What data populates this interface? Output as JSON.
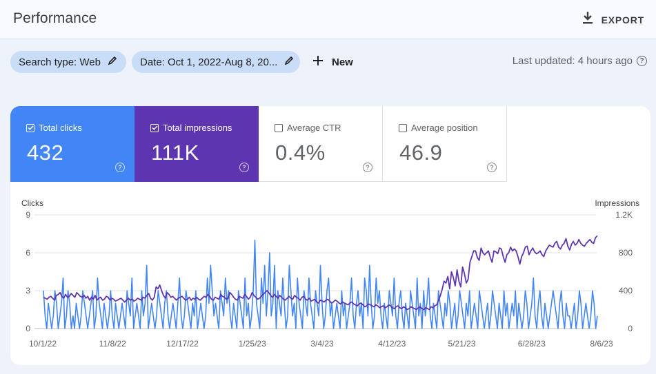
{
  "header": {
    "title": "Performance",
    "export_label": "EXPORT",
    "export_icon": "download-icon"
  },
  "filters": {
    "search_type": "Search type: Web",
    "date": "Date: Oct 1, 2022-Aug 8, 20...",
    "new_label": "New",
    "last_updated": "Last updated: 4 hours ago"
  },
  "metrics": [
    {
      "label": "Total clicks",
      "value": "432",
      "checked": true,
      "color": "#4285f4"
    },
    {
      "label": "Total impressions",
      "value": "111K",
      "checked": true,
      "color": "#5e35b1"
    },
    {
      "label": "Average CTR",
      "value": "0.4%",
      "checked": false
    },
    {
      "label": "Average position",
      "value": "46.9",
      "checked": false
    }
  ],
  "chart_data": {
    "type": "line",
    "left_axis_label": "Clicks",
    "right_axis_label": "Impressions",
    "left_ticks": [
      "9",
      "6",
      "3",
      "0"
    ],
    "right_ticks": [
      "1.2K",
      "800",
      "400",
      "0"
    ],
    "left_ylim": [
      0,
      9
    ],
    "right_ylim": [
      0,
      1200
    ],
    "x_tick_labels": [
      "10/1/22",
      "11/8/22",
      "12/17/22",
      "1/25/23",
      "3/4/23",
      "4/12/23",
      "5/21/23",
      "6/28/23",
      "8/6/23"
    ],
    "x_start": "2022-10-01",
    "x_end": "2023-08-08",
    "colors": {
      "clicks": "#4285f4",
      "impressions": "#5e35b1",
      "grid": "#e0e0e0"
    },
    "series": [
      {
        "name": "Clicks",
        "axis": "left",
        "values": [
          3,
          1,
          0,
          2,
          1,
          0,
          1,
          3,
          2,
          0,
          1,
          2,
          4,
          0,
          1,
          3,
          2,
          0,
          1,
          0,
          2,
          1,
          0,
          1,
          3,
          2,
          1,
          0,
          1,
          2,
          3,
          0,
          1,
          4,
          2,
          1,
          0,
          2,
          1,
          0,
          1,
          3,
          1,
          0,
          2,
          1,
          0,
          1,
          2,
          1,
          0,
          3,
          2,
          1,
          4,
          0,
          1,
          2,
          1,
          0,
          3,
          1,
          2,
          5,
          0,
          1,
          2,
          1,
          0,
          1,
          3,
          2,
          1,
          0,
          2,
          3,
          1,
          0,
          1,
          2,
          1,
          0,
          2,
          4,
          1,
          0,
          1,
          3,
          2,
          1,
          0,
          2,
          1,
          3,
          0,
          1,
          2,
          1,
          0,
          1,
          4,
          2,
          5,
          3,
          1,
          2,
          1,
          0,
          3,
          2,
          1,
          4,
          2,
          3,
          1,
          0,
          2,
          1,
          0,
          3,
          2,
          1,
          0,
          4,
          1,
          2,
          0,
          1,
          3,
          7,
          2,
          1,
          0,
          4,
          2,
          5,
          1,
          3,
          6,
          1,
          2,
          5,
          0,
          3,
          2,
          1,
          4,
          2,
          0,
          1,
          5,
          3,
          1,
          2,
          0,
          4,
          2,
          1,
          0,
          3,
          2,
          1,
          4,
          2,
          1,
          0,
          3,
          2,
          1,
          5,
          2,
          0,
          1,
          3,
          4,
          1,
          2,
          0,
          1,
          2,
          1,
          0,
          3,
          1,
          2,
          0,
          1,
          2,
          4,
          1,
          0,
          2,
          3,
          1,
          2,
          0,
          4,
          3,
          1,
          5,
          2,
          0,
          1,
          4,
          2,
          3,
          1,
          0,
          2,
          1,
          0,
          3,
          2,
          1,
          4,
          1,
          0,
          2,
          3,
          1,
          0,
          2,
          1,
          0,
          3,
          2,
          1,
          0,
          4,
          1,
          2,
          0,
          3,
          1,
          2,
          4,
          1,
          0,
          2,
          1,
          0,
          3,
          2,
          1,
          0,
          2,
          1,
          3,
          2,
          0,
          1,
          2,
          0,
          1,
          3,
          2,
          1,
          0,
          2,
          1,
          3,
          0,
          1,
          2,
          1,
          0,
          3,
          2,
          1,
          0,
          1,
          2,
          0,
          1,
          3,
          2,
          1,
          0,
          2,
          1,
          0,
          3,
          1,
          2,
          0,
          1,
          2,
          1,
          3,
          0,
          2,
          1,
          0,
          1,
          3,
          2,
          0,
          1,
          2,
          4,
          1,
          0,
          2,
          3,
          1,
          0,
          2,
          1,
          0,
          1,
          2,
          3,
          2,
          1,
          0,
          2,
          3,
          1,
          0,
          2,
          1,
          1,
          0,
          1,
          2,
          0,
          1,
          3,
          2,
          0,
          1,
          2,
          1,
          0,
          1,
          3,
          2,
          0,
          1
        ]
      },
      {
        "name": "Impressions",
        "axis": "right",
        "values": [
          330,
          320,
          310,
          330,
          340,
          320,
          300,
          350,
          360,
          380,
          340,
          320,
          360,
          330,
          340,
          370,
          350,
          330,
          380,
          360,
          340,
          330,
          350,
          320,
          340,
          300,
          330,
          310,
          350,
          300,
          320,
          330,
          300,
          310,
          340,
          330,
          300,
          320,
          310,
          290,
          300,
          310,
          320,
          300,
          280,
          300,
          320,
          300,
          310,
          290,
          300,
          320,
          310,
          300,
          330,
          320,
          350,
          370,
          320,
          300,
          330,
          440,
          420,
          460,
          400,
          350,
          320,
          380,
          360,
          330,
          340,
          320,
          300,
          320,
          330,
          340,
          320,
          300,
          310,
          330,
          300,
          320,
          310,
          330,
          310,
          300,
          320,
          340,
          330,
          360,
          340,
          310,
          300,
          330,
          320,
          310,
          360,
          340,
          330,
          310,
          320,
          380,
          360,
          330,
          310,
          300,
          340,
          330,
          320,
          360,
          340,
          310,
          330,
          380,
          350,
          330,
          310,
          320,
          340,
          360,
          380,
          400,
          380,
          350,
          330,
          360,
          340,
          320,
          350,
          330,
          310,
          300,
          320,
          340,
          320,
          310,
          350,
          330,
          320,
          300,
          330,
          340,
          310,
          300,
          320,
          290,
          300,
          310,
          280,
          270,
          300,
          290,
          280,
          300,
          310,
          290,
          270,
          280,
          300,
          290,
          270,
          260,
          280,
          270,
          260,
          250,
          270,
          280,
          260,
          250,
          240,
          260,
          270,
          250,
          230,
          240,
          260,
          250,
          240,
          230,
          250,
          240,
          220,
          230,
          240,
          220,
          230,
          250,
          240,
          220,
          210,
          230,
          240,
          220,
          210,
          230,
          220,
          200,
          210,
          230,
          220,
          210,
          200,
          220,
          230,
          210,
          200,
          220,
          210,
          200,
          230,
          220,
          240,
          250,
          300,
          350,
          420,
          500,
          480,
          550,
          420,
          600,
          540,
          450,
          620,
          500,
          440,
          650,
          580,
          480,
          520,
          700,
          760,
          820,
          820,
          750,
          720,
          850,
          800,
          780,
          800,
          820,
          750,
          700,
          820,
          810,
          790,
          850,
          840,
          760,
          700,
          780,
          800,
          860,
          820,
          840,
          820,
          760,
          680,
          760,
          800,
          860,
          870,
          780,
          820,
          850,
          810,
          790,
          800,
          820,
          780,
          760,
          820,
          850,
          880,
          870,
          860,
          900,
          920,
          860,
          840,
          880,
          900,
          950,
          870,
          830,
          890,
          920,
          880,
          900,
          940,
          900,
          880,
          870,
          900,
          920,
          940,
          910,
          900,
          960,
          980
        ]
      }
    ]
  }
}
